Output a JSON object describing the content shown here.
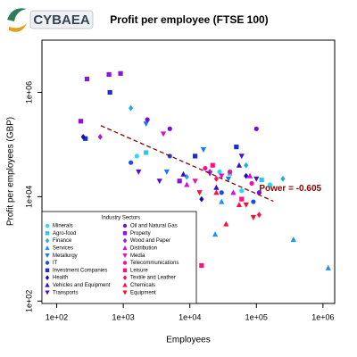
{
  "logo": "CYBAEA",
  "chart_data": {
    "type": "scatter",
    "title": "Profit per employee (FTSE 100)",
    "x_label": "Employees",
    "y_label": "Profit per employees (GBP)",
    "xscale": "log",
    "yscale": "log",
    "grid": false,
    "xlim": [
      60,
      1500000
    ],
    "ylim": [
      90,
      10000000
    ],
    "xticks": [
      {
        "value": 100,
        "label": "1e+02"
      },
      {
        "value": 1000,
        "label": "1e+03"
      },
      {
        "value": 10000,
        "label": "1e+04"
      },
      {
        "value": 100000,
        "label": "1e+05"
      },
      {
        "value": 1000000,
        "label": "1e+06"
      }
    ],
    "yticks": [
      {
        "value": 100,
        "label": "1e+02"
      },
      {
        "value": 10000,
        "label": "1e+04"
      },
      {
        "value": 1000000,
        "label": "1e+06"
      }
    ],
    "legend_title": "Industry Sectors",
    "legend_position": "bottom-left",
    "fit": {
      "label": "Power = -0.605",
      "color": "#8b0000",
      "x": [
        460,
        180000
      ],
      "y": [
        230000,
        8200
      ]
    },
    "series": [
      {
        "name": "Minerals",
        "color": "#22e0ee",
        "shape": "circle",
        "x": [
          1600,
          28000,
          60000,
          160000
        ],
        "y": [
          60000,
          30000,
          13000,
          17000
        ]
      },
      {
        "name": "Agro-food",
        "color": "#22ccee",
        "shape": "square",
        "x": [
          2200,
          40000,
          120000
        ],
        "y": [
          70000,
          28000,
          21000
        ]
      },
      {
        "name": "Finance",
        "color": "#22aaee",
        "shape": "diamond",
        "x": [
          1300,
          9000,
          70000,
          250000
        ],
        "y": [
          500000,
          24000,
          40000,
          22000
        ]
      },
      {
        "name": "Services",
        "color": "#1e90ff",
        "shape": "triangle-up",
        "x": [
          1200000,
          360000,
          3100,
          6100,
          10000,
          24000,
          30000
        ],
        "y": [
          430,
          1500,
          2200,
          1600,
          1400,
          1900,
          8000
        ]
      },
      {
        "name": "Metallurgy",
        "color": "#1a78f0",
        "shape": "triangle-down",
        "x": [
          2200,
          16000,
          4500,
          38000
        ],
        "y": [
          250000,
          80000,
          30000,
          22000
        ]
      },
      {
        "name": "IT",
        "color": "#1a50e0",
        "shape": "circle",
        "x": [
          1300,
          5000,
          30000,
          90000
        ],
        "y": [
          45000,
          60000,
          12000,
          8000
        ]
      },
      {
        "name": "Investment Companies",
        "color": "#1a30c8",
        "shape": "square",
        "x": [
          630,
          270,
          12000,
          50000
        ],
        "y": [
          1000000,
          130000,
          60000,
          90000
        ]
      },
      {
        "name": "Health",
        "color": "#1a10b0",
        "shape": "diamond",
        "x": [
          250,
          15000,
          70000
        ],
        "y": [
          140000,
          9000,
          25000
        ]
      },
      {
        "name": "Vehicles and Equipment",
        "color": "#3010c0",
        "shape": "triangle-up",
        "x": [
          8000,
          25000,
          55000
        ],
        "y": [
          27000,
          15000,
          40000
        ]
      },
      {
        "name": "Transports",
        "color": "#5010d0",
        "shape": "triangle-down",
        "x": [
          1700,
          3500,
          20000,
          60000,
          100000
        ],
        "y": [
          30000,
          20000,
          28000,
          60000,
          22000
        ]
      },
      {
        "name": "Oil and Natural Gas",
        "color": "#7010d8",
        "shape": "circle",
        "x": [
          2300,
          5000,
          100000,
          110000
        ],
        "y": [
          300000,
          200000,
          200000,
          12000
        ]
      },
      {
        "name": "Property",
        "color": "#9010e0",
        "shape": "square",
        "x": [
          285,
          610,
          910,
          230,
          7000
        ],
        "y": [
          1800000,
          2200000,
          2300000,
          280000,
          20000
        ]
      },
      {
        "name": "Wood and Paper",
        "color": "#b010e0",
        "shape": "diamond",
        "x": [
          450,
          20000
        ],
        "y": [
          140000,
          30000
        ]
      },
      {
        "name": "Distribution",
        "color": "#d010e0",
        "shape": "triangle-up",
        "x": [
          9000,
          45000,
          80000
        ],
        "y": [
          17000,
          12000,
          25000
        ]
      },
      {
        "name": "Media",
        "color": "#e010c0",
        "shape": "triangle-down",
        "x": [
          4000,
          30000,
          12000
        ],
        "y": [
          160000,
          25000,
          20000
        ]
      },
      {
        "name": "Telecommunications",
        "color": "#f010a0",
        "shape": "circle",
        "x": [
          17000,
          40000,
          85000
        ],
        "y": [
          35000,
          30000,
          18000
        ]
      },
      {
        "name": "Leisure",
        "color": "#ff1080",
        "shape": "square",
        "x": [
          15000,
          22000,
          60000
        ],
        "y": [
          480,
          40000,
          9000
        ]
      },
      {
        "name": "Textile and Leather",
        "color": "#ff1060",
        "shape": "diamond",
        "x": [
          25000,
          110000
        ],
        "y": [
          22000,
          4500
        ]
      },
      {
        "name": "Chemicals",
        "color": "#ff1040",
        "shape": "triangle-up",
        "x": [
          55000,
          25000,
          35000
        ],
        "y": [
          7000,
          12000,
          3000
        ]
      },
      {
        "name": "Equipment",
        "color": "#ff1020",
        "shape": "triangle-down",
        "x": [
          70000,
          14000,
          90000
        ],
        "y": [
          7000,
          12000,
          4000
        ]
      }
    ]
  }
}
